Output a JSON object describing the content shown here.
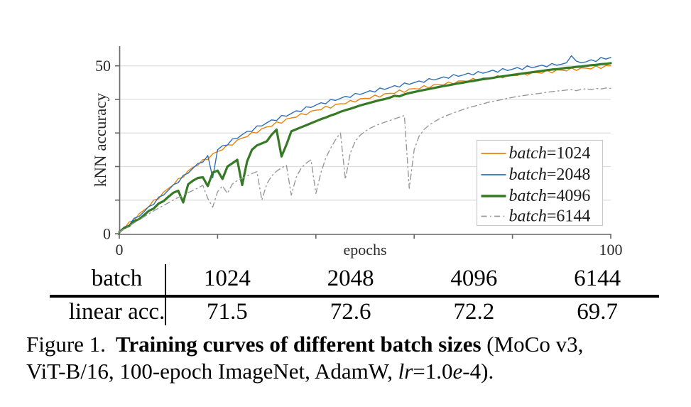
{
  "table": {
    "row_headers": [
      "batch",
      "linear acc."
    ],
    "batch_values": [
      "1024",
      "2048",
      "4096",
      "6144"
    ],
    "linear_acc_values": [
      "71.5",
      "72.6",
      "72.2",
      "69.7"
    ]
  },
  "caption": {
    "label": "Figure 1.",
    "title_bold": "Training curves of different batch sizes",
    "after_title": " (MoCo v3,",
    "line2_start": "ViT-B/16, 100-epoch ImageNet, AdamW, ",
    "lr_italic": "lr",
    "equals_value": "=1.0",
    "e_italic": "e",
    "suffix": "-4)."
  },
  "chart_data": {
    "type": "line",
    "title": "",
    "xlabel": "epochs",
    "ylabel": "kNN accuracy",
    "xlim": [
      0,
      100
    ],
    "ylim": [
      0,
      56
    ],
    "xticks": [
      0,
      20,
      40,
      60,
      80,
      100
    ],
    "yticks": [
      0,
      10,
      20,
      30,
      40,
      50
    ],
    "labeled_xticks": [
      {
        "v": 0,
        "label": "0"
      },
      {
        "v": 100,
        "label": "100"
      }
    ],
    "labeled_yticks": [
      {
        "v": 0,
        "label": "0"
      },
      {
        "v": 50,
        "label": "50"
      }
    ],
    "grid": "horizontal",
    "legend_position": "inside lower right",
    "axis_color": "#666666",
    "grid_color": "#dcdcdc",
    "text_color": "#2b2b2b",
    "x_step": 1,
    "series": [
      {
        "name": "batch=1024",
        "color": "#E8830C",
        "style": "solid",
        "width": 1.4,
        "values": [
          0.5,
          1.5,
          3.5,
          3.9,
          5.9,
          7.0,
          8.0,
          10.0,
          10.4,
          12.4,
          13.5,
          14.5,
          16.4,
          16.8,
          18.7,
          19.8,
          20.4,
          22.1,
          22.1,
          23.8,
          24.5,
          25.0,
          26.5,
          26.4,
          27.9,
          28.5,
          28.9,
          30.2,
          30.0,
          31.3,
          31.8,
          32.0,
          33.3,
          32.9,
          34.2,
          34.5,
          34.7,
          35.8,
          35.4,
          36.5,
          36.8,
          36.9,
          38.0,
          37.4,
          38.5,
          38.7,
          38.7,
          39.7,
          39.2,
          40.2,
          40.3,
          40.3,
          41.3,
          40.7,
          41.7,
          41.8,
          41.8,
          42.8,
          42.1,
          43.1,
          43.2,
          43.1,
          44.1,
          43.4,
          44.4,
          44.4,
          44.3,
          45.2,
          44.6,
          45.5,
          45.5,
          45.4,
          46.3,
          45.5,
          46.4,
          46.4,
          46.3,
          47.1,
          46.4,
          47.2,
          47.2,
          47.1,
          47.9,
          47.2,
          48.0,
          48.0,
          47.8,
          48.7,
          47.9,
          48.8,
          48.7,
          48.5,
          49.4,
          48.6,
          49.4,
          49.3,
          49.1,
          50.0,
          49.2,
          50.1,
          50.0
        ]
      },
      {
        "name": "batch=2048",
        "color": "#2D6FB8",
        "style": "solid",
        "width": 1.4,
        "values": [
          0.5,
          2.0,
          2.5,
          4.6,
          5.1,
          6.5,
          8.1,
          8.7,
          10.9,
          11.5,
          13.0,
          14.6,
          15.2,
          17.4,
          18.0,
          19.5,
          20.9,
          21.3,
          23.3,
          16.6,
          25.0,
          26.2,
          26.4,
          28.2,
          28.4,
          29.5,
          30.5,
          30.5,
          32.1,
          32.1,
          33.0,
          33.9,
          33.7,
          35.2,
          35.0,
          35.8,
          36.6,
          36.4,
          37.8,
          37.6,
          38.3,
          39.0,
          38.7,
          40.0,
          39.7,
          40.3,
          40.9,
          40.6,
          41.8,
          41.5,
          42.0,
          42.6,
          42.2,
          43.4,
          43.0,
          43.5,
          44.1,
          43.7,
          44.9,
          44.5,
          45.0,
          45.5,
          45.1,
          46.2,
          45.8,
          46.2,
          46.7,
          46.3,
          47.4,
          46.9,
          47.3,
          47.8,
          47.3,
          48.3,
          47.8,
          48.2,
          48.7,
          48.1,
          49.2,
          48.6,
          49.0,
          49.5,
          48.9,
          50.0,
          49.4,
          49.8,
          50.2,
          49.7,
          50.7,
          50.2,
          50.5,
          50.9,
          53.0,
          51.4,
          50.9,
          51.2,
          51.8,
          51.3,
          52.5,
          52.0,
          52.5
        ]
      },
      {
        "name": "batch=4096",
        "color": "#367A26",
        "style": "solid",
        "width": 3.2,
        "values": [
          0.5,
          1.7,
          2.3,
          3.7,
          4.3,
          5.5,
          6.8,
          7.5,
          9.0,
          9.7,
          11.0,
          12.2,
          12.8,
          9.3,
          14.7,
          15.8,
          16.6,
          16.8,
          14.2,
          18.2,
          18.8,
          16.3,
          20.0,
          21.0,
          22.0,
          14.5,
          21.5,
          25.0,
          26.3,
          26.9,
          27.5,
          29.5,
          31.0,
          23.0,
          26.5,
          30.5,
          31.1,
          31.7,
          32.3,
          32.9,
          33.5,
          34.1,
          34.6,
          35.2,
          35.7,
          36.3,
          36.8,
          37.2,
          37.7,
          38.2,
          38.6,
          39.0,
          39.4,
          39.8,
          40.1,
          40.5,
          41.1,
          40.9,
          41.5,
          41.9,
          42.2,
          42.5,
          42.8,
          43.1,
          43.4,
          43.7,
          44.0,
          44.2,
          44.5,
          44.8,
          45.0,
          45.3,
          45.5,
          45.8,
          46.0,
          46.2,
          46.4,
          46.7,
          46.9,
          47.1,
          47.3,
          47.5,
          47.7,
          47.9,
          48.1,
          48.3,
          48.5,
          48.7,
          48.9,
          49.0,
          49.2,
          49.4,
          49.5,
          49.7,
          49.8,
          50.0,
          50.2,
          50.3,
          50.5,
          50.6,
          50.8
        ]
      },
      {
        "name": "batch=6144",
        "color": "#999999",
        "style": "dashdot",
        "width": 1.4,
        "values": [
          0.5,
          1.4,
          2.3,
          3.2,
          4.1,
          5.0,
          5.9,
          6.8,
          7.6,
          8.4,
          9.2,
          10.0,
          10.8,
          11.5,
          12.2,
          12.9,
          13.6,
          14.4,
          10.5,
          7.9,
          12.5,
          14.2,
          12.0,
          14.8,
          15.8,
          16.5,
          17.2,
          17.9,
          18.5,
          10.0,
          14.8,
          17.2,
          18.6,
          19.6,
          20.4,
          11.5,
          16.8,
          19.5,
          21.0,
          22.0,
          12.0,
          18.0,
          22.5,
          25.5,
          28.0,
          30.0,
          16.2,
          24.0,
          27.5,
          29.3,
          30.5,
          31.4,
          32.1,
          32.7,
          33.2,
          33.7,
          34.2,
          34.7,
          35.2,
          13.5,
          25.0,
          29.0,
          31.0,
          32.3,
          33.3,
          34.1,
          34.8,
          35.4,
          36.0,
          36.5,
          37.0,
          37.5,
          37.9,
          38.3,
          38.7,
          39.1,
          39.4,
          39.7,
          40.0,
          40.3,
          40.6,
          40.9,
          41.1,
          41.3,
          41.5,
          41.7,
          41.9,
          42.1,
          42.3,
          42.5,
          42.6,
          42.8,
          42.9,
          42.6,
          43.0,
          43.2,
          42.9,
          43.3,
          43.1,
          43.4,
          43.3
        ]
      }
    ]
  }
}
